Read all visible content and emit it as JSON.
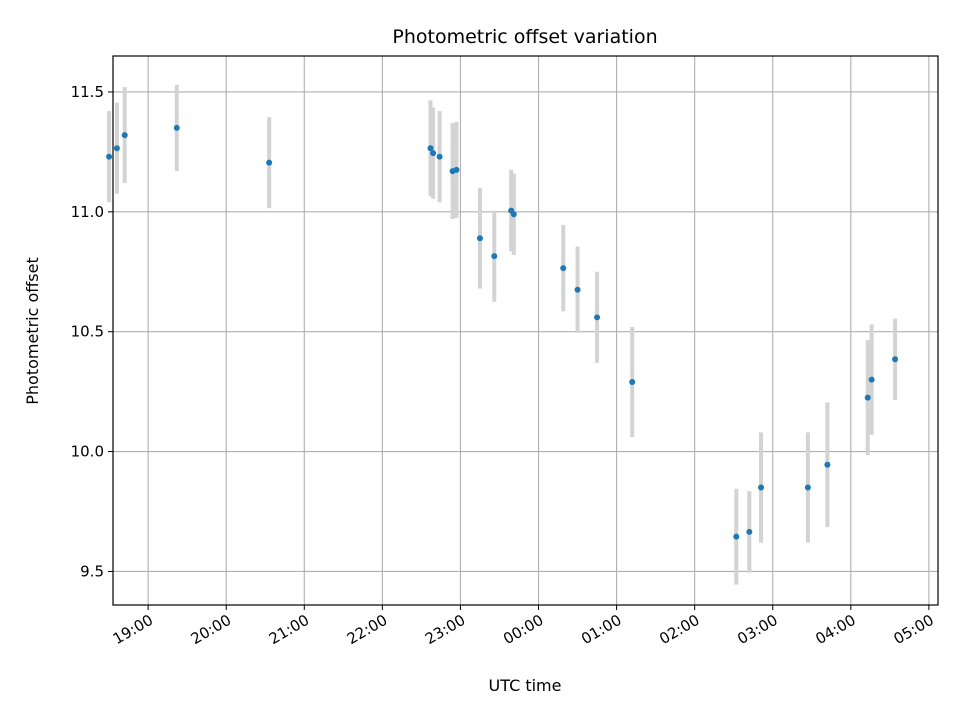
{
  "chart_data": {
    "type": "scatter",
    "title": "Photometric offset variation",
    "xlabel": "UTC time",
    "ylabel": "Photometric offset",
    "x_ticks": [
      "19:00",
      "20:00",
      "21:00",
      "22:00",
      "23:00",
      "00:00",
      "01:00",
      "02:00",
      "03:00",
      "04:00",
      "05:00"
    ],
    "y_ticks": [
      "9.5",
      "10.0",
      "10.5",
      "11.0",
      "11.5"
    ],
    "xlim": [
      "2000-01-01T18:33",
      "2000-01-02T05:07"
    ],
    "ylim": [
      9.36,
      11.65
    ],
    "grid": true,
    "point_color": "#1f77b4",
    "errorbar_color": "#d3d3d3",
    "points": [
      {
        "time": "2000-01-01T18:30",
        "y": 11.23,
        "err": 0.19
      },
      {
        "time": "2000-01-01T18:36",
        "y": 11.265,
        "err": 0.19
      },
      {
        "time": "2000-01-01T18:42",
        "y": 11.32,
        "err": 0.2
      },
      {
        "time": "2000-01-01T19:22",
        "y": 11.35,
        "err": 0.18
      },
      {
        "time": "2000-01-01T20:33",
        "y": 11.205,
        "err": 0.19
      },
      {
        "time": "2000-01-01T22:37",
        "y": 11.265,
        "err": 0.2
      },
      {
        "time": "2000-01-01T22:39",
        "y": 11.245,
        "err": 0.19
      },
      {
        "time": "2000-01-01T22:44",
        "y": 11.23,
        "err": 0.19
      },
      {
        "time": "2000-01-01T22:54",
        "y": 11.17,
        "err": 0.2
      },
      {
        "time": "2000-01-01T22:57",
        "y": 11.175,
        "err": 0.2
      },
      {
        "time": "2000-01-01T23:15",
        "y": 10.89,
        "err": 0.21
      },
      {
        "time": "2000-01-01T23:26",
        "y": 10.815,
        "err": 0.19
      },
      {
        "time": "2000-01-01T23:39",
        "y": 11.005,
        "err": 0.17
      },
      {
        "time": "2000-01-01T23:41",
        "y": 10.99,
        "err": 0.17
      },
      {
        "time": "2000-01-02T00:19",
        "y": 10.765,
        "err": 0.18
      },
      {
        "time": "2000-01-02T00:30",
        "y": 10.675,
        "err": 0.18
      },
      {
        "time": "2000-01-02T00:45",
        "y": 10.56,
        "err": 0.19
      },
      {
        "time": "2000-01-02T01:12",
        "y": 10.29,
        "err": 0.23
      },
      {
        "time": "2000-01-02T02:32",
        "y": 9.645,
        "err": 0.2
      },
      {
        "time": "2000-01-02T02:42",
        "y": 9.665,
        "err": 0.17
      },
      {
        "time": "2000-01-02T02:51",
        "y": 9.85,
        "err": 0.23
      },
      {
        "time": "2000-01-02T03:27",
        "y": 9.85,
        "err": 0.23
      },
      {
        "time": "2000-01-02T03:42",
        "y": 9.945,
        "err": 0.26
      },
      {
        "time": "2000-01-02T04:13",
        "y": 10.225,
        "err": 0.24
      },
      {
        "time": "2000-01-02T04:16",
        "y": 10.3,
        "err": 0.23
      },
      {
        "time": "2000-01-02T04:34",
        "y": 10.385,
        "err": 0.17
      }
    ]
  }
}
